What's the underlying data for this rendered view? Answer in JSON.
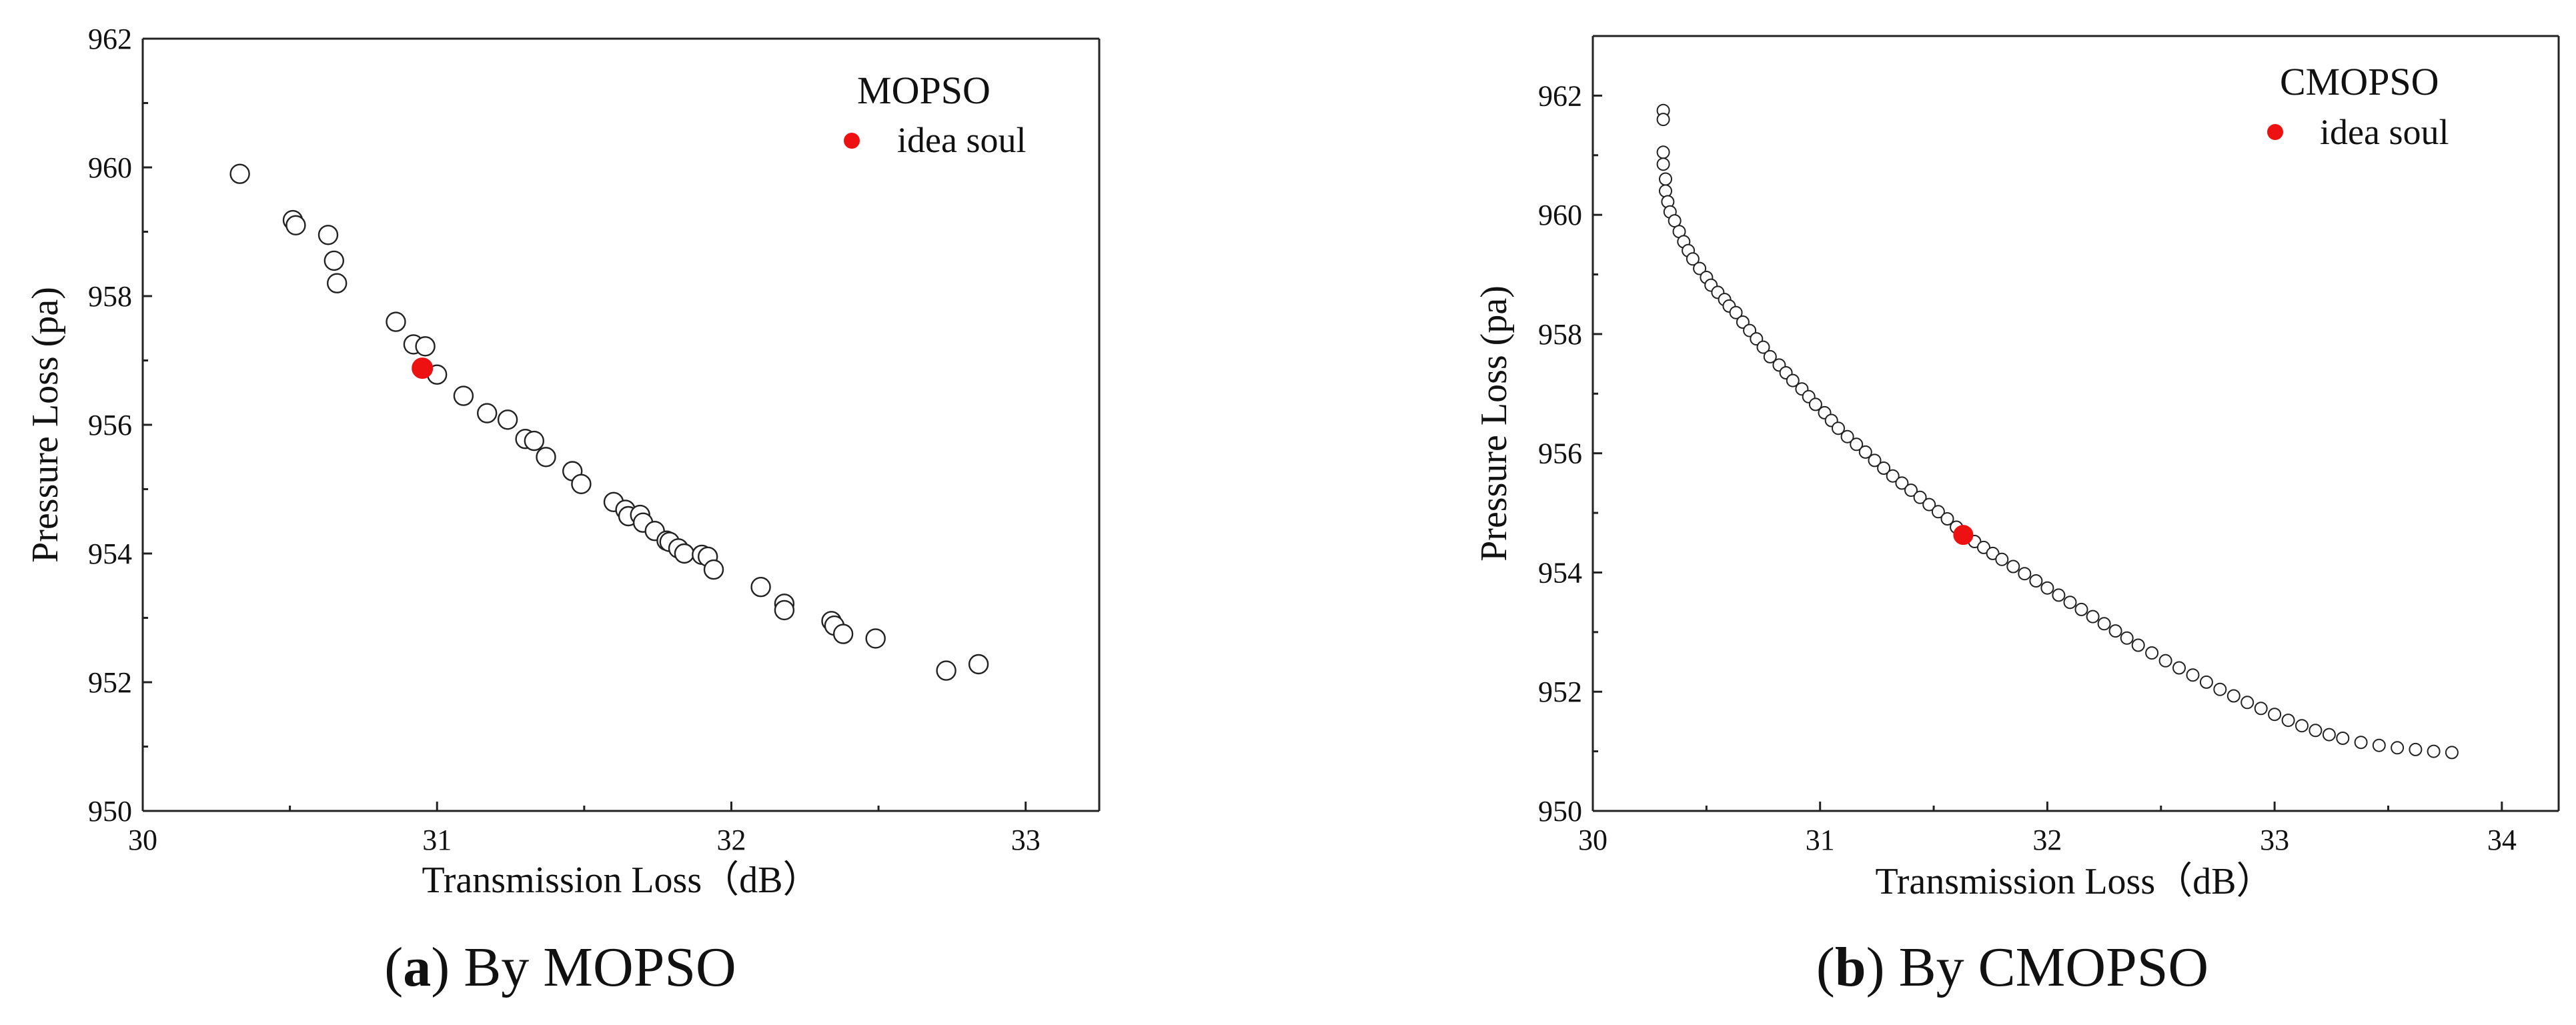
{
  "figure": {
    "panels": [
      {
        "caption_letter": "a",
        "caption_open": "(",
        "caption_text": ") By MOPSO"
      },
      {
        "caption_letter": "b",
        "caption_open": "(",
        "caption_text": ") By CMOPSO"
      }
    ]
  },
  "chart_data": [
    {
      "type": "scatter",
      "title": "",
      "xlabel": "Transmission Loss（dB）",
      "ylabel": "Pressure Loss (pa)",
      "xlim": [
        30,
        33.25
      ],
      "ylim": [
        950,
        962
      ],
      "xticks": [
        30,
        31,
        32,
        33
      ],
      "yticks": [
        950,
        952,
        954,
        956,
        958,
        960,
        962
      ],
      "legend": {
        "title": "MOPSO",
        "placement": "top-right",
        "entries": [
          "idea soul"
        ]
      },
      "highlight_color": "#ee1111",
      "series": [
        {
          "marker": "hollow-circle",
          "x": [
            30.33,
            30.51,
            30.52,
            30.63,
            30.65,
            30.66,
            30.86,
            30.92,
            30.96,
            31.0,
            31.09,
            31.17,
            31.24,
            31.3,
            31.33,
            31.37,
            31.46,
            31.49,
            31.6,
            31.64,
            31.65,
            31.69,
            31.7,
            31.74,
            31.78,
            31.79,
            31.82,
            31.84,
            31.9,
            31.92,
            31.94,
            32.1,
            32.18,
            32.18,
            32.34,
            32.35,
            32.38,
            32.49,
            32.73,
            32.84
          ],
          "y": [
            959.9,
            959.18,
            959.1,
            958.95,
            958.55,
            958.2,
            957.6,
            957.25,
            957.22,
            956.78,
            956.45,
            956.18,
            956.08,
            955.78,
            955.75,
            955.5,
            955.28,
            955.08,
            954.8,
            954.68,
            954.58,
            954.6,
            954.48,
            954.35,
            954.2,
            954.18,
            954.08,
            954.0,
            953.98,
            953.95,
            953.75,
            953.48,
            953.22,
            953.12,
            952.95,
            952.88,
            952.75,
            952.68,
            952.18,
            952.28
          ]
        },
        {
          "name": "idea soul",
          "marker": "filled-circle",
          "x": [
            30.95
          ],
          "y": [
            956.88
          ]
        }
      ]
    },
    {
      "type": "scatter",
      "title": "",
      "xlabel": "Transmission Loss（dB）",
      "ylabel": "Pressure Loss (pa)",
      "xlim": [
        30,
        34.25
      ],
      "ylim": [
        950,
        963
      ],
      "xticks": [
        30,
        31,
        32,
        33,
        34
      ],
      "yticks": [
        950,
        952,
        954,
        956,
        958,
        960,
        962
      ],
      "legend": {
        "title": "CMOPSO",
        "placement": "top-right",
        "entries": [
          "idea soul"
        ]
      },
      "highlight_color": "#ee1111",
      "series": [
        {
          "marker": "hollow-circle-small",
          "x": [
            30.31,
            30.31,
            30.31,
            30.31,
            30.32,
            30.32,
            30.33,
            30.34,
            30.36,
            30.38,
            30.4,
            30.42,
            30.44,
            30.47,
            30.5,
            30.52,
            30.55,
            30.58,
            30.6,
            30.63,
            30.66,
            30.69,
            30.72,
            30.75,
            30.78,
            30.82,
            30.85,
            30.88,
            30.92,
            30.95,
            30.98,
            31.02,
            31.05,
            31.08,
            31.12,
            31.16,
            31.2,
            31.24,
            31.28,
            31.32,
            31.36,
            31.4,
            31.44,
            31.48,
            31.52,
            31.56,
            31.6,
            31.68,
            31.72,
            31.76,
            31.8,
            31.85,
            31.9,
            31.95,
            32.0,
            32.05,
            32.1,
            32.15,
            32.2,
            32.25,
            32.3,
            32.35,
            32.4,
            32.46,
            32.52,
            32.58,
            32.64,
            32.7,
            32.76,
            32.82,
            32.88,
            32.94,
            33.0,
            33.06,
            33.12,
            33.18,
            33.24,
            33.3,
            33.38,
            33.46,
            33.54,
            33.62,
            33.7,
            33.78
          ],
          "y": [
            961.75,
            961.6,
            961.05,
            960.85,
            960.6,
            960.4,
            960.22,
            960.05,
            959.9,
            959.72,
            959.55,
            959.4,
            959.26,
            959.1,
            958.95,
            958.82,
            958.7,
            958.58,
            958.47,
            958.36,
            958.2,
            958.06,
            957.92,
            957.78,
            957.62,
            957.48,
            957.35,
            957.22,
            957.08,
            956.95,
            956.82,
            956.68,
            956.55,
            956.42,
            956.28,
            956.15,
            956.02,
            955.88,
            955.75,
            955.62,
            955.5,
            955.38,
            955.26,
            955.14,
            955.02,
            954.9,
            954.76,
            954.52,
            954.42,
            954.32,
            954.22,
            954.1,
            953.98,
            953.86,
            953.74,
            953.62,
            953.5,
            953.38,
            953.26,
            953.14,
            953.02,
            952.9,
            952.78,
            952.65,
            952.52,
            952.4,
            952.28,
            952.16,
            952.04,
            951.93,
            951.82,
            951.72,
            951.62,
            951.52,
            951.43,
            951.35,
            951.28,
            951.22,
            951.15,
            951.1,
            951.06,
            951.03,
            951.0,
            950.98
          ]
        },
        {
          "name": "idea soul",
          "marker": "filled-circle",
          "x": [
            31.63
          ],
          "y": [
            954.63
          ]
        }
      ]
    }
  ]
}
